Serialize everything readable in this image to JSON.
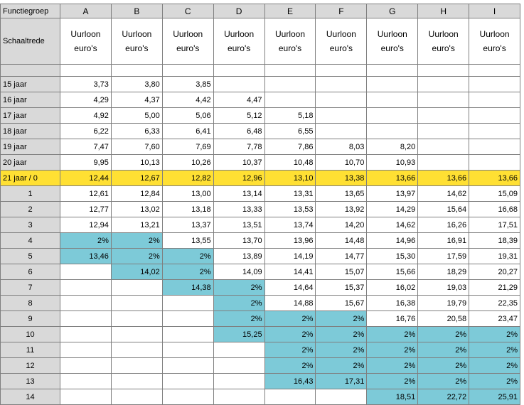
{
  "header": {
    "corner": "Functiegroep",
    "groups": [
      "A",
      "B",
      "C",
      "D",
      "E",
      "F",
      "G",
      "H",
      "I"
    ],
    "row_label": "Schaaltrede",
    "unit_line1": "Uurloon",
    "unit_line2": "euro's"
  },
  "rows": [
    {
      "label": "15 jaar",
      "type": "age",
      "cells": [
        "3,73",
        "3,80",
        "3,85",
        "",
        "",
        "",
        "",
        "",
        ""
      ],
      "cyan": []
    },
    {
      "label": "16 jaar",
      "type": "age",
      "cells": [
        "4,29",
        "4,37",
        "4,42",
        "4,47",
        "",
        "",
        "",
        "",
        ""
      ],
      "cyan": []
    },
    {
      "label": "17 jaar",
      "type": "age",
      "cells": [
        "4,92",
        "5,00",
        "5,06",
        "5,12",
        "5,18",
        "",
        "",
        "",
        ""
      ],
      "cyan": []
    },
    {
      "label": "18 jaar",
      "type": "age",
      "cells": [
        "6,22",
        "6,33",
        "6,41",
        "6,48",
        "6,55",
        "",
        "",
        "",
        ""
      ],
      "cyan": []
    },
    {
      "label": "19 jaar",
      "type": "age",
      "cells": [
        "7,47",
        "7,60",
        "7,69",
        "7,78",
        "7,86",
        "8,03",
        "8,20",
        "",
        ""
      ],
      "cyan": []
    },
    {
      "label": "20 jaar",
      "type": "age",
      "cells": [
        "9,95",
        "10,13",
        "10,26",
        "10,37",
        "10,48",
        "10,70",
        "10,93",
        "",
        ""
      ],
      "cyan": []
    },
    {
      "label": "21 jaar / 0",
      "type": "yellow",
      "cells": [
        "12,44",
        "12,67",
        "12,82",
        "12,96",
        "13,10",
        "13,38",
        "13,66",
        "13,66",
        "13,66"
      ],
      "cyan": []
    },
    {
      "label": "1",
      "type": "step",
      "cells": [
        "12,61",
        "12,84",
        "13,00",
        "13,14",
        "13,31",
        "13,65",
        "13,97",
        "14,62",
        "15,09"
      ],
      "cyan": []
    },
    {
      "label": "2",
      "type": "step",
      "cells": [
        "12,77",
        "13,02",
        "13,18",
        "13,33",
        "13,53",
        "13,92",
        "14,29",
        "15,64",
        "16,68"
      ],
      "cyan": []
    },
    {
      "label": "3",
      "type": "step",
      "cells": [
        "12,94",
        "13,21",
        "13,37",
        "13,51",
        "13,74",
        "14,20",
        "14,62",
        "16,26",
        "17,51"
      ],
      "cyan": []
    },
    {
      "label": "4",
      "type": "step",
      "cells": [
        "2%",
        "2%",
        "13,55",
        "13,70",
        "13,96",
        "14,48",
        "14,96",
        "16,91",
        "18,39"
      ],
      "cyan": [
        0,
        1
      ]
    },
    {
      "label": "5",
      "type": "step",
      "cells": [
        "13,46",
        "2%",
        "2%",
        "13,89",
        "14,19",
        "14,77",
        "15,30",
        "17,59",
        "19,31"
      ],
      "cyan": [
        0,
        1,
        2
      ]
    },
    {
      "label": "6",
      "type": "step",
      "cells": [
        "",
        "14,02",
        "2%",
        "14,09",
        "14,41",
        "15,07",
        "15,66",
        "18,29",
        "20,27"
      ],
      "cyan": [
        1,
        2
      ]
    },
    {
      "label": "7",
      "type": "step",
      "cells": [
        "",
        "",
        "14,38",
        "2%",
        "14,64",
        "15,37",
        "16,02",
        "19,03",
        "21,29"
      ],
      "cyan": [
        2,
        3
      ]
    },
    {
      "label": "8",
      "type": "step",
      "cells": [
        "",
        "",
        "",
        "2%",
        "14,88",
        "15,67",
        "16,38",
        "19,79",
        "22,35"
      ],
      "cyan": [
        3
      ]
    },
    {
      "label": "9",
      "type": "step",
      "cells": [
        "",
        "",
        "",
        "2%",
        "2%",
        "2%",
        "16,76",
        "20,58",
        "23,47"
      ],
      "cyan": [
        3,
        4,
        5
      ]
    },
    {
      "label": "10",
      "type": "step",
      "cells": [
        "",
        "",
        "",
        "15,25",
        "2%",
        "2%",
        "2%",
        "2%",
        "2%"
      ],
      "cyan": [
        3,
        4,
        5,
        6,
        7,
        8
      ]
    },
    {
      "label": "11",
      "type": "step",
      "cells": [
        "",
        "",
        "",
        "",
        "2%",
        "2%",
        "2%",
        "2%",
        "2%"
      ],
      "cyan": [
        4,
        5,
        6,
        7,
        8
      ]
    },
    {
      "label": "12",
      "type": "step",
      "cells": [
        "",
        "",
        "",
        "",
        "2%",
        "2%",
        "2%",
        "2%",
        "2%"
      ],
      "cyan": [
        4,
        5,
        6,
        7,
        8
      ]
    },
    {
      "label": "13",
      "type": "step",
      "cells": [
        "",
        "",
        "",
        "",
        "16,43",
        "17,31",
        "2%",
        "2%",
        "2%"
      ],
      "cyan": [
        4,
        5,
        6,
        7,
        8
      ]
    },
    {
      "label": "14",
      "type": "step",
      "cells": [
        "",
        "",
        "",
        "",
        "",
        "",
        "18,51",
        "22,72",
        "25,91"
      ],
      "cyan": [
        6,
        7,
        8
      ]
    }
  ],
  "colors": {
    "header_gray": "#d9d9d9",
    "highlight_yellow": "#ffe033",
    "highlight_cyan": "#7dcad8",
    "grid": "#7f7f7f"
  }
}
